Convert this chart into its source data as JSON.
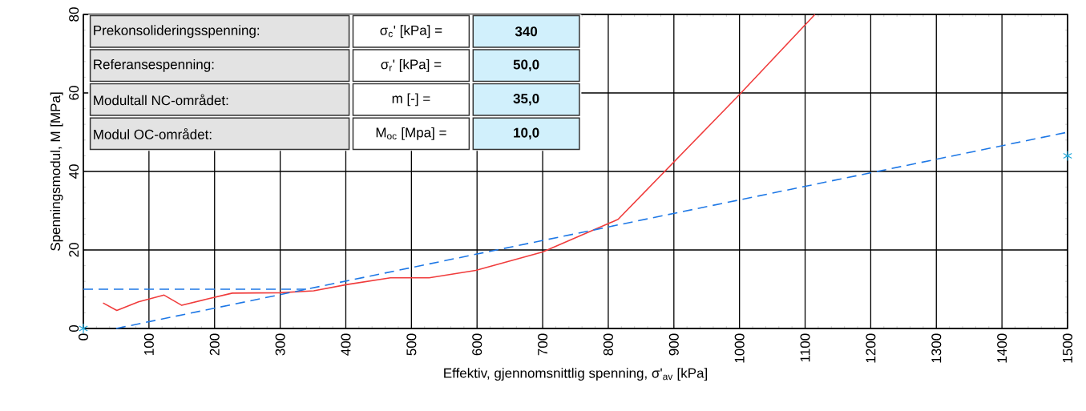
{
  "chart_data": {
    "type": "line",
    "xlabel": "Effektiv, gjennomsnittlig spenning, σ'$_{av}$  [kPa]",
    "ylabel": "Spenningsmodul, M [MPa]",
    "xlim": [
      0,
      1500
    ],
    "ylim": [
      0,
      80
    ],
    "xticks": [
      0,
      100,
      200,
      300,
      400,
      500,
      600,
      700,
      800,
      900,
      1000,
      1100,
      1200,
      1300,
      1400,
      1500
    ],
    "yticks": [
      0,
      20,
      40,
      60,
      80
    ],
    "grid": true,
    "series": [
      {
        "color": "#f03c3c",
        "line_style": "solid",
        "marker": "none",
        "x": [
          30,
          51,
          84,
          123,
          150,
          186,
          227,
          300,
          351,
          402,
          468,
          527,
          598,
          700,
          815,
          1000,
          1115
        ],
        "values": [
          6.5,
          4.6,
          6.8,
          8.5,
          5.9,
          7.4,
          9.0,
          9.1,
          9.6,
          11.2,
          12.9,
          12.9,
          14.8,
          19.5,
          27.8,
          59.6,
          80
        ]
      },
      {
        "color": "#1e78e6",
        "line_style": "dashed",
        "marker": "none",
        "x": [
          0,
          340
        ],
        "values": [
          10,
          10
        ]
      },
      {
        "color": "#1e78e6",
        "line_style": "dashed",
        "marker": "none",
        "x": [
          50,
          1500
        ],
        "values": [
          0,
          50
        ]
      },
      {
        "type": "scatter",
        "color": "#22aadd",
        "marker": "cross",
        "x": [
          0,
          1500
        ],
        "values": [
          0,
          44
        ]
      }
    ],
    "annotations": [
      "Prekonsolideringsspenning:",
      "σ$_{c}$' [kPa] =",
      "340",
      "Referansespenning:",
      "σ$_{r}$' [kPa] =",
      "50,0",
      "Modultall NC-området:",
      "m [-] =",
      "35,0",
      "Modul OC-området:",
      "M$_{oc}$ [Mpa] =",
      "10,0"
    ]
  }
}
